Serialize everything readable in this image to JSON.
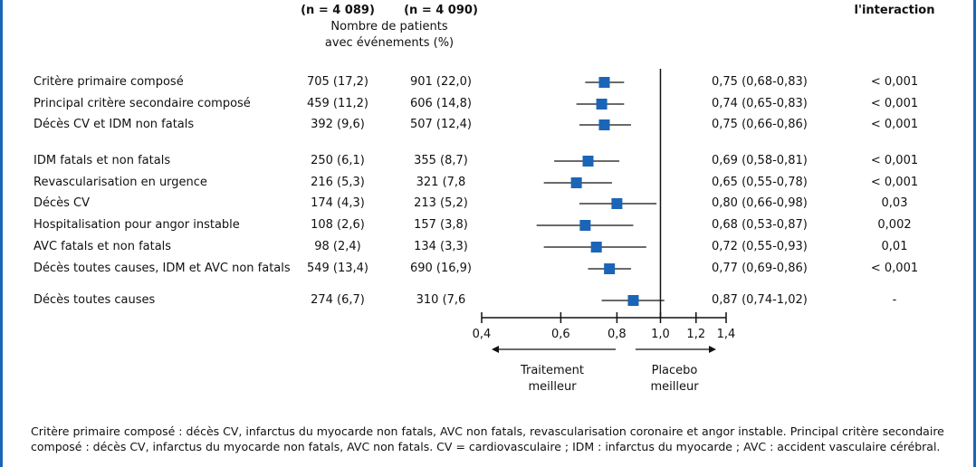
{
  "header": {
    "n_treatment": "(n = 4 089)",
    "n_placebo": "(n = 4 090)",
    "events_line1": "Nombre de patients",
    "events_line2": "avec événements (%)",
    "interaction_label": "l'interaction"
  },
  "chart_data": {
    "type": "forest",
    "x_scale": "log",
    "xlim": [
      0.4,
      1.4
    ],
    "ticks": [
      0.4,
      0.6,
      0.8,
      1.0,
      1.2,
      1.4
    ],
    "tick_labels": [
      "0,4",
      "0,6",
      "0,8",
      "1,0",
      "1,2",
      "1,4"
    ],
    "reference_line": 1.0,
    "left_arrow_label": [
      "Traitement",
      "meilleur"
    ],
    "right_arrow_label": [
      "Placebo",
      "meilleur"
    ],
    "marker_color": "#1a65b8",
    "rows": [
      {
        "label": "Critère primaire composé",
        "treatment": "705 (17,2)",
        "placebo": "901 (22,0)",
        "hr_text": "0,75 (0,68-0,83)",
        "p": "< 0,001",
        "hr": 0.75,
        "lo": 0.68,
        "hi": 0.83
      },
      {
        "label": "Principal critère secondaire composé",
        "treatment": "459 (11,2)",
        "placebo": "606 (14,8)",
        "hr_text": "0,74 (0,65-0,83)",
        "p": "< 0,001",
        "hr": 0.74,
        "lo": 0.65,
        "hi": 0.83
      },
      {
        "label": "Décès CV et IDM non fatals",
        "treatment": "392 (9,6)",
        "placebo": "507 (12,4)",
        "hr_text": "0,75 (0,66-0,86)",
        "p": "< 0,001",
        "hr": 0.75,
        "lo": 0.66,
        "hi": 0.86
      },
      {
        "label": "IDM fatals et non fatals",
        "treatment": "250 (6,1)",
        "placebo": "355 (8,7)",
        "hr_text": "0,69 (0,58-0,81)",
        "p": "< 0,001",
        "hr": 0.69,
        "lo": 0.58,
        "hi": 0.81
      },
      {
        "label": "Revascularisation en urgence",
        "treatment": "216 (5,3)",
        "placebo": "321 (7,8",
        "hr_text": "0,65 (0,55-0,78)",
        "p": "< 0,001",
        "hr": 0.65,
        "lo": 0.55,
        "hi": 0.78
      },
      {
        "label": "Décès CV",
        "treatment": "174 (4,3)",
        "placebo": "213 (5,2)",
        "hr_text": "0,80 (0,66-0,98)",
        "p": "0,03",
        "hr": 0.8,
        "lo": 0.66,
        "hi": 0.98
      },
      {
        "label": "Hospitalisation pour angor instable",
        "treatment": "108 (2,6)",
        "placebo": "157 (3,8)",
        "hr_text": "0,68 (0,53-0,87)",
        "p": "0,002",
        "hr": 0.68,
        "lo": 0.53,
        "hi": 0.87
      },
      {
        "label": "AVC fatals et non fatals",
        "treatment": "98 (2,4)",
        "placebo": "134 (3,3)",
        "hr_text": "0,72 (0,55-0,93)",
        "p": "0,01",
        "hr": 0.72,
        "lo": 0.55,
        "hi": 0.93
      },
      {
        "label": "Décès toutes causes, IDM et AVC non fatals",
        "treatment": "549 (13,4)",
        "placebo": "690 (16,9)",
        "hr_text": "0,77 (0,69-0,86)",
        "p": "< 0,001",
        "hr": 0.77,
        "lo": 0.69,
        "hi": 0.86
      },
      {
        "label": "Décès toutes causes",
        "treatment": "274 (6,7)",
        "placebo": "310 (7,6",
        "hr_text": "0,87 (0,74-1,02)",
        "p": "-",
        "hr": 0.87,
        "lo": 0.74,
        "hi": 1.02
      }
    ]
  },
  "footnote": "Critère primaire composé : décès CV, infarctus du myocarde non fatals, AVC non fatals, revascularisation coronaire et angor instable. Principal critère secondaire composé : décès CV, infarctus du myocarde non fatals, AVC non fatals. CV = cardiovasculaire ; IDM : infarctus du myocarde ; AVC : accident vasculaire cérébral."
}
